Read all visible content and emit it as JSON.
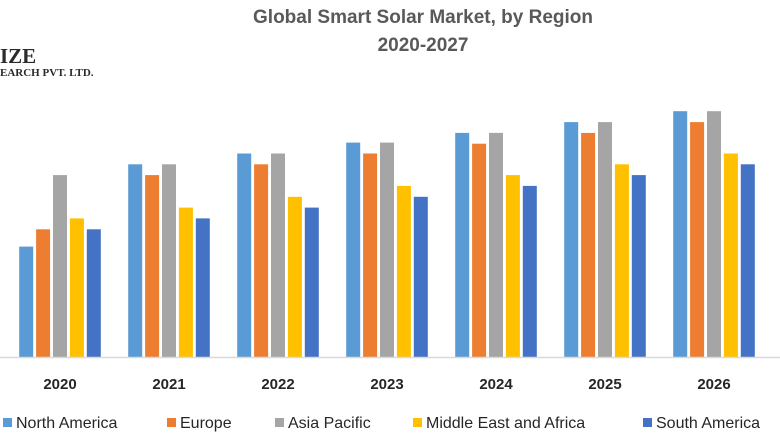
{
  "chart_data": {
    "type": "bar",
    "title": "Global Smart Solar Market, by Region",
    "subtitle": "2020-2027",
    "xlabel": "",
    "ylabel": "",
    "grid": false,
    "legend_position": "bottom",
    "ylim": [
      0,
      23
    ],
    "categories": [
      "2020",
      "2021",
      "2022",
      "2023",
      "2024",
      "2025",
      "2026"
    ],
    "series": [
      {
        "name": "North America",
        "color": "#5b9bd5",
        "values": [
          10.2,
          17.8,
          18.8,
          19.8,
          20.7,
          21.7,
          22.7
        ]
      },
      {
        "name": "Europe",
        "color": "#ed7d31",
        "values": [
          11.8,
          16.8,
          17.8,
          18.8,
          19.7,
          20.7,
          21.7
        ]
      },
      {
        "name": "Asia Pacific",
        "color": "#a5a5a5",
        "values": [
          16.8,
          17.8,
          18.8,
          19.8,
          20.7,
          21.7,
          22.7
        ]
      },
      {
        "name": "Middle East and Africa",
        "color": "#ffc000",
        "values": [
          12.8,
          13.8,
          14.8,
          15.8,
          16.8,
          17.8,
          18.8
        ]
      },
      {
        "name": "South America",
        "color": "#4472c4",
        "values": [
          11.8,
          12.8,
          13.8,
          14.8,
          15.8,
          16.8,
          17.8
        ]
      }
    ]
  },
  "logo": {
    "line1": "IZE",
    "line2": "EARCH PVT. LTD."
  },
  "colors": {
    "axis": "#d9d9d9",
    "title": "#595959"
  }
}
